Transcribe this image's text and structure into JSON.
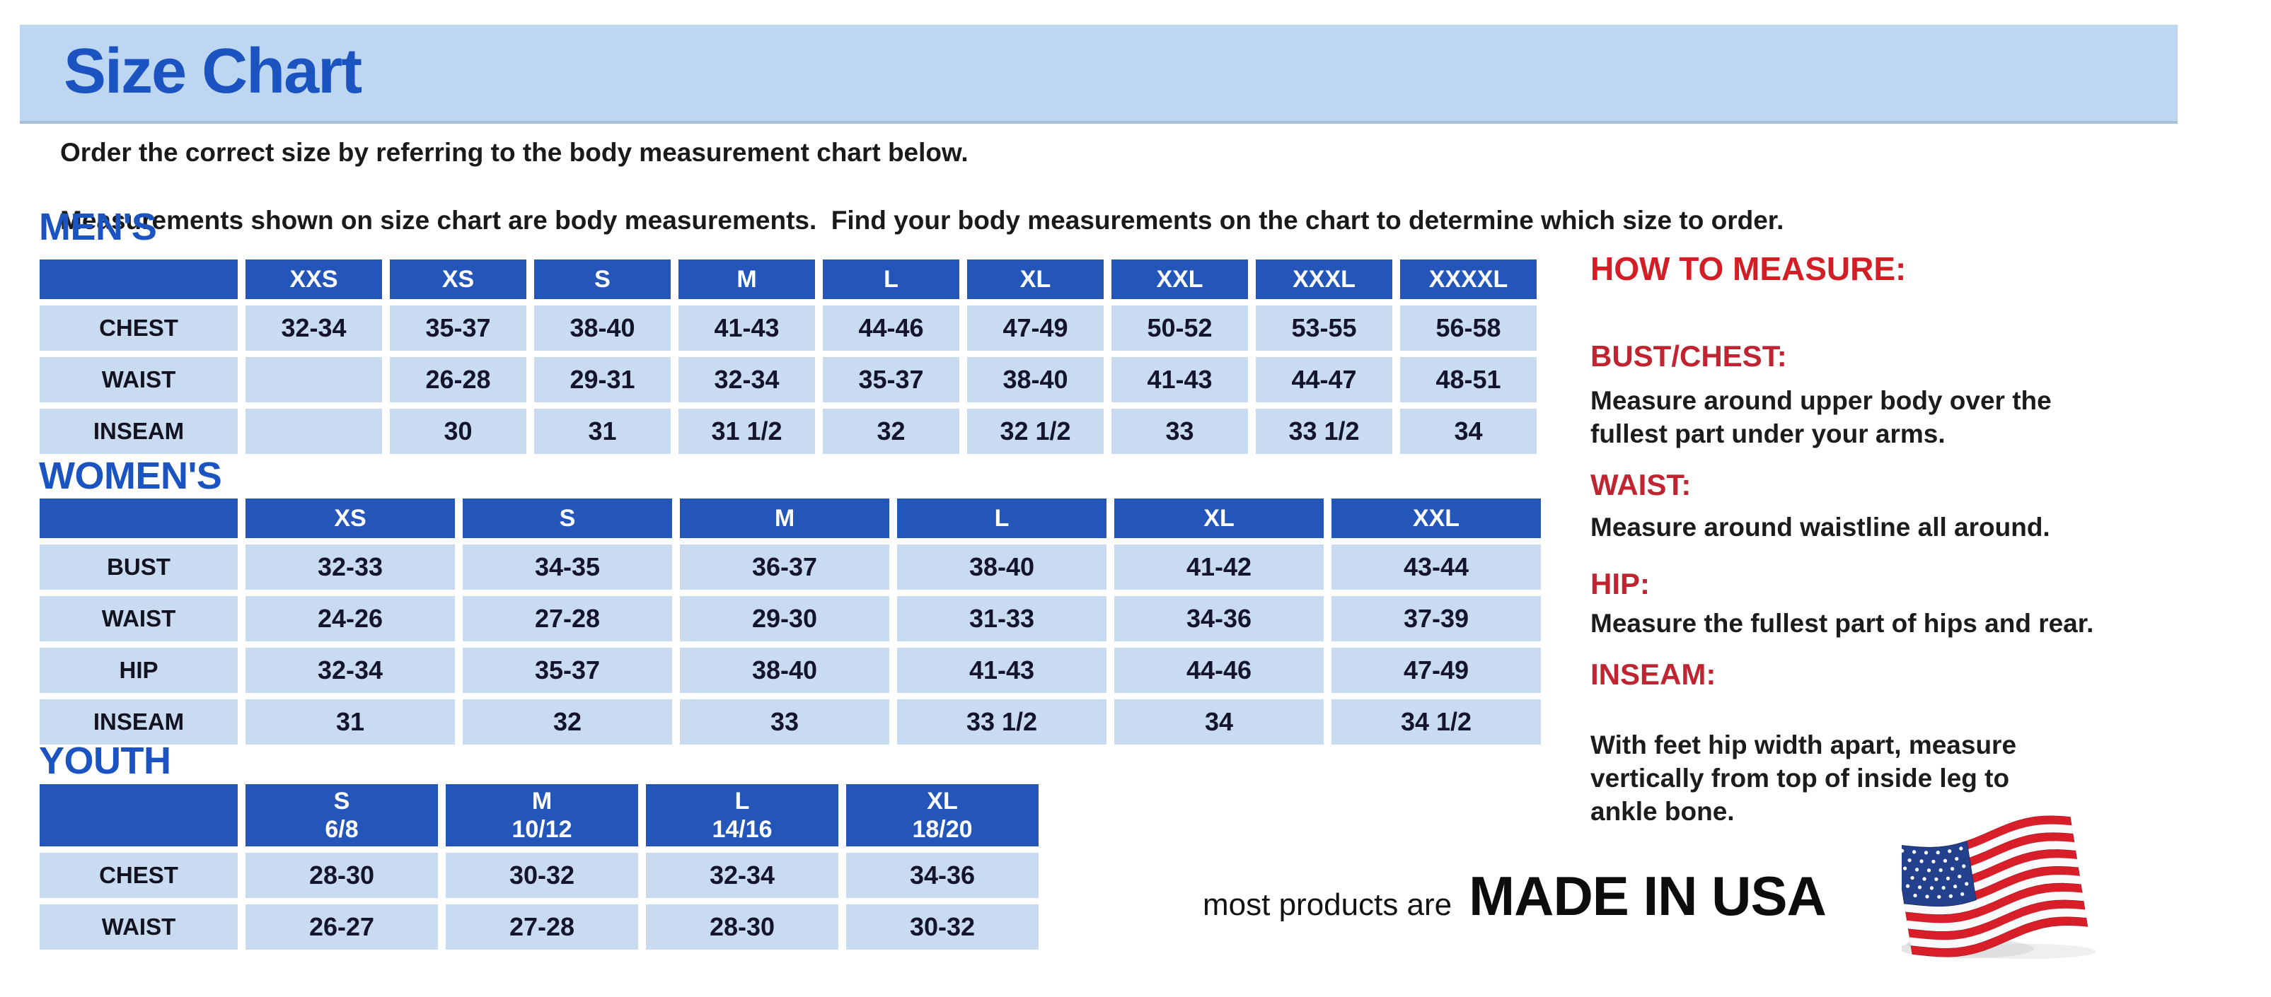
{
  "banner": {
    "title": "Size Chart"
  },
  "intro": {
    "line1": "Order the correct size by referring to the body measurement chart below.",
    "line2": "Measurements shown on size chart are body measurements.  Find your body measurements on the chart to determine which size to order."
  },
  "tables": [
    {
      "id": "mens",
      "heading": "MEN'S",
      "columns": [
        "",
        "XXS",
        "XS",
        "S",
        "M",
        "L",
        "XL",
        "XXL",
        "XXXL",
        "XXXXL"
      ],
      "rows": [
        {
          "label": "CHEST",
          "values": [
            "32-34",
            "35-37",
            "38-40",
            "41-43",
            "44-46",
            "47-49",
            "50-52",
            "53-55",
            "56-58"
          ]
        },
        {
          "label": "WAIST",
          "values": [
            "",
            "26-28",
            "29-31",
            "32-34",
            "35-37",
            "38-40",
            "41-43",
            "44-47",
            "48-51"
          ]
        },
        {
          "label": "INSEAM",
          "values": [
            "",
            "30",
            "31",
            "31 1/2",
            "32",
            "32 1/2",
            "33",
            "33 1/2",
            "34"
          ]
        }
      ]
    },
    {
      "id": "womens",
      "heading": "WOMEN'S",
      "columns": [
        "",
        "XS",
        "S",
        "M",
        "L",
        "XL",
        "XXL"
      ],
      "rows": [
        {
          "label": "BUST",
          "values": [
            "32-33",
            "34-35",
            "36-37",
            "38-40",
            "41-42",
            "43-44"
          ]
        },
        {
          "label": "WAIST",
          "values": [
            "24-26",
            "27-28",
            "29-30",
            "31-33",
            "34-36",
            "37-39"
          ]
        },
        {
          "label": "HIP",
          "values": [
            "32-34",
            "35-37",
            "38-40",
            "41-43",
            "44-46",
            "47-49"
          ]
        },
        {
          "label": "INSEAM",
          "values": [
            "31",
            "32",
            "33",
            "33 1/2",
            "34",
            "34 1/2"
          ]
        }
      ]
    },
    {
      "id": "youth",
      "heading": "YOUTH",
      "columns": [
        "",
        "S\n6/8",
        "M\n10/12",
        "L\n14/16",
        "XL\n18/20"
      ],
      "rows": [
        {
          "label": "CHEST",
          "values": [
            "28-30",
            "30-32",
            "32-34",
            "34-36"
          ]
        },
        {
          "label": "WAIST",
          "values": [
            "26-27",
            "27-28",
            "28-30",
            "30-32"
          ]
        }
      ]
    }
  ],
  "how_to_measure": {
    "heading": "HOW TO MEASURE:",
    "sections": [
      {
        "label": "BUST/CHEST:",
        "text": "Measure around upper body over the\nfullest part under your arms."
      },
      {
        "label": "WAIST:",
        "text": "Measure around waistline all around."
      },
      {
        "label": "HIP:",
        "text": "Measure the fullest part of hips and rear."
      },
      {
        "label": "INSEAM:",
        "text": "With feet hip width apart, measure\nvertically from top of inside leg to\nankle bone."
      }
    ]
  },
  "footer": {
    "prefix": "most products are",
    "emphasis": "MADE IN USA",
    "flag_icon": "usa-flag-icon"
  },
  "colors": {
    "banner_bg": "#bdd7f3",
    "heading_blue": "#1b53c1",
    "table_header_blue": "#2356b8",
    "table_cell_blue": "#c9dbf1",
    "red_heading": "#d41e26",
    "red_label": "#bf2430",
    "body_text": "#1c1c1c",
    "flag_red": "#d81e28",
    "flag_blue": "#24418e"
  }
}
